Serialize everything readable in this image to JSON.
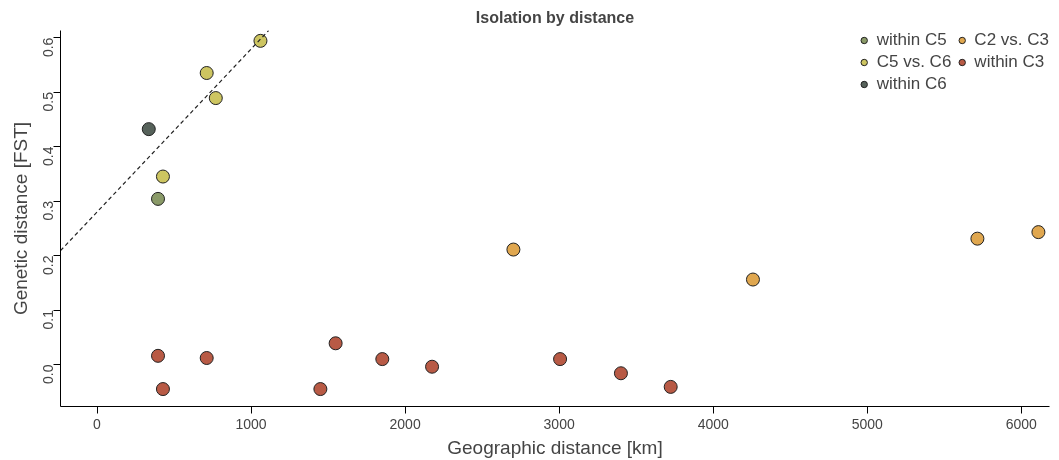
{
  "chart_data": {
    "type": "scatter",
    "title": "Isolation by distance",
    "xlabel": "Geographic distance [km]",
    "ylabel": "Genetic distance [FST]",
    "xlim": [
      -237,
      6183
    ],
    "ylim": [
      -0.077,
      0.613
    ],
    "xticks": [
      0,
      1000,
      2000,
      3000,
      4000,
      5000,
      6000
    ],
    "yticks": [
      {
        "value": 0,
        "label": "0.0"
      },
      0.1,
      0.2,
      0.3,
      0.4,
      0.5,
      0.6
    ],
    "grid": false,
    "legend": "top right",
    "marker": "circle",
    "series": [
      {
        "name": "within C5",
        "color": "#8a9a68",
        "x": [
          396
        ],
        "values": [
          0.304
        ]
      },
      {
        "name": "C5 vs. C6",
        "color": "#cdc561",
        "x": [
          428,
          712,
          771,
          1061
        ],
        "values": [
          0.345,
          0.535,
          0.489,
          0.594
        ]
      },
      {
        "name": "within C6",
        "color": "#56625a",
        "x": [
          336
        ],
        "values": [
          0.432
        ]
      },
      {
        "name": "C2 vs. C3",
        "color": "#e0a74f",
        "x": [
          2703,
          4258,
          5715,
          6111
        ],
        "values": [
          0.211,
          0.156,
          0.231,
          0.243
        ]
      },
      {
        "name": "within C3",
        "color": "#b85a45",
        "x": [
          396,
          428,
          712,
          1450,
          1549,
          1852,
          2175,
          3006,
          3401,
          3724
        ],
        "values": [
          0.016,
          -0.045,
          0.012,
          -0.045,
          0.039,
          0.01,
          -0.004,
          0.01,
          -0.016,
          -0.041
        ]
      },
      {
        "type": "line",
        "marker": "none",
        "color": "#222222",
        "line_style": "dashed",
        "x": [
          -237,
          1114
        ],
        "values": [
          0.209,
          0.613
        ]
      }
    ]
  }
}
